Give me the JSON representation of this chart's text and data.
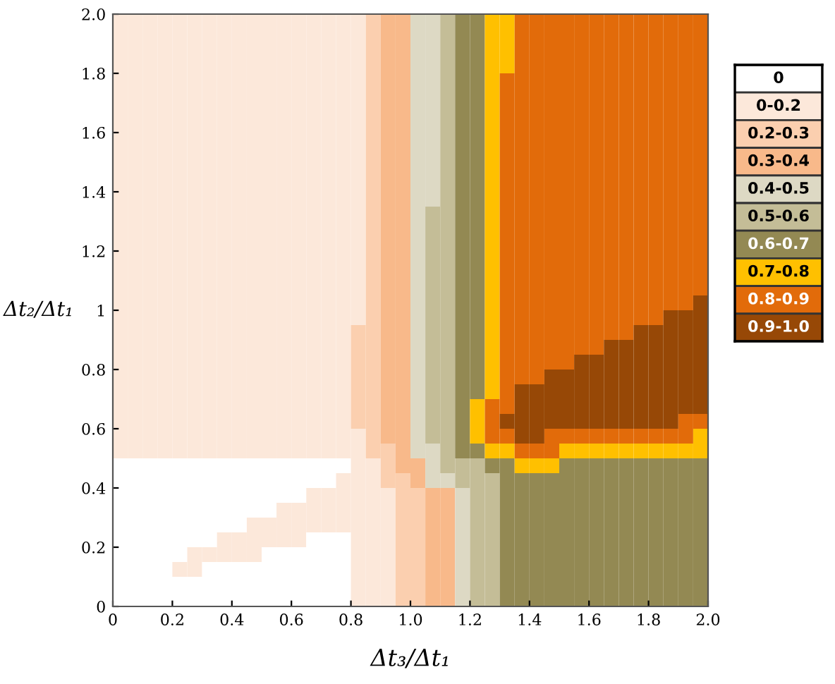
{
  "chart_data": {
    "type": "heatmap",
    "xlabel": "Δt₃/Δt₁",
    "ylabel": "Δt₂/Δt₁",
    "xlim": [
      0,
      2.0
    ],
    "ylim": [
      0,
      2.0
    ],
    "xticks": [
      0,
      0.2,
      0.4,
      0.6,
      0.8,
      {
        "value": 1,
        "label": "1.0"
      },
      1.2,
      1.4,
      1.6,
      1.8,
      {
        "value": 2,
        "label": "2.0"
      }
    ],
    "yticks": [
      0,
      0.2,
      0.4,
      0.6,
      0.8,
      1,
      1.2,
      1.4,
      1.6,
      1.8,
      {
        "value": 2,
        "label": "2.0"
      }
    ],
    "clim": [
      -0.5,
      9.5
    ],
    "cticks": [
      {
        "value": 0,
        "label": "0"
      },
      {
        "value": 1,
        "label": "0-0.2"
      },
      {
        "value": 2,
        "label": "0.2-0.3"
      },
      {
        "value": 3,
        "label": "0.3-0.4"
      },
      {
        "value": 4,
        "label": "0.4-0.5"
      },
      {
        "value": 5,
        "label": "0.5-0.6"
      },
      {
        "value": 6,
        "label": "0.6-0.7"
      },
      {
        "value": 7,
        "label": "0.7-0.8"
      },
      {
        "value": 8,
        "label": "0.8-0.9"
      },
      {
        "value": 9,
        "label": "0.9-1.0"
      }
    ],
    "colors": [
      "#ffffff",
      "#fce8da",
      "#fbcfaf",
      "#f8b98a",
      "#ddd9c4",
      "#c4bd97",
      "#938953",
      "#ffc000",
      "#e26b0a",
      "#974806"
    ],
    "cells": [
      [
        1,
        1,
        1,
        1,
        1,
        1,
        1,
        1,
        1,
        1,
        1,
        1,
        1,
        1,
        1,
        1,
        1,
        2,
        3,
        3,
        4,
        4,
        5,
        6,
        6,
        7,
        7,
        8,
        8,
        8,
        8,
        8,
        8,
        8,
        8,
        8,
        8,
        8,
        8,
        8
      ],
      [
        1,
        1,
        1,
        1,
        1,
        1,
        1,
        1,
        1,
        1,
        1,
        1,
        1,
        1,
        1,
        1,
        1,
        2,
        3,
        3,
        4,
        4,
        5,
        6,
        6,
        7,
        7,
        8,
        8,
        8,
        8,
        8,
        8,
        8,
        8,
        8,
        8,
        8,
        8,
        8
      ],
      [
        1,
        1,
        1,
        1,
        1,
        1,
        1,
        1,
        1,
        1,
        1,
        1,
        1,
        1,
        1,
        1,
        1,
        2,
        3,
        3,
        4,
        4,
        5,
        6,
        6,
        7,
        7,
        8,
        8,
        8,
        8,
        8,
        8,
        8,
        8,
        8,
        8,
        8,
        8,
        8
      ],
      [
        1,
        1,
        1,
        1,
        1,
        1,
        1,
        1,
        1,
        1,
        1,
        1,
        1,
        1,
        1,
        1,
        1,
        2,
        3,
        3,
        4,
        4,
        5,
        6,
        6,
        7,
        7,
        8,
        8,
        8,
        8,
        8,
        8,
        8,
        8,
        8,
        8,
        8,
        8,
        8
      ],
      [
        1,
        1,
        1,
        1,
        1,
        1,
        1,
        1,
        1,
        1,
        1,
        1,
        1,
        1,
        1,
        1,
        1,
        2,
        3,
        3,
        4,
        4,
        5,
        6,
        6,
        7,
        8,
        8,
        8,
        8,
        8,
        8,
        8,
        8,
        8,
        8,
        8,
        8,
        8,
        8
      ],
      [
        1,
        1,
        1,
        1,
        1,
        1,
        1,
        1,
        1,
        1,
        1,
        1,
        1,
        1,
        1,
        1,
        1,
        2,
        3,
        3,
        4,
        4,
        5,
        6,
        6,
        7,
        8,
        8,
        8,
        8,
        8,
        8,
        8,
        8,
        8,
        8,
        8,
        8,
        8,
        8
      ],
      [
        1,
        1,
        1,
        1,
        1,
        1,
        1,
        1,
        1,
        1,
        1,
        1,
        1,
        1,
        1,
        1,
        1,
        2,
        3,
        3,
        4,
        4,
        5,
        6,
        6,
        7,
        8,
        8,
        8,
        8,
        8,
        8,
        8,
        8,
        8,
        8,
        8,
        8,
        8,
        8
      ],
      [
        1,
        1,
        1,
        1,
        1,
        1,
        1,
        1,
        1,
        1,
        1,
        1,
        1,
        1,
        1,
        1,
        1,
        2,
        3,
        3,
        4,
        4,
        5,
        6,
        6,
        7,
        8,
        8,
        8,
        8,
        8,
        8,
        8,
        8,
        8,
        8,
        8,
        8,
        8,
        8
      ],
      [
        1,
        1,
        1,
        1,
        1,
        1,
        1,
        1,
        1,
        1,
        1,
        1,
        1,
        1,
        1,
        1,
        1,
        2,
        3,
        3,
        4,
        4,
        5,
        6,
        6,
        7,
        8,
        8,
        8,
        8,
        8,
        8,
        8,
        8,
        8,
        8,
        8,
        8,
        8,
        8
      ],
      [
        1,
        1,
        1,
        1,
        1,
        1,
        1,
        1,
        1,
        1,
        1,
        1,
        1,
        1,
        1,
        1,
        1,
        2,
        3,
        3,
        4,
        4,
        5,
        6,
        6,
        7,
        8,
        8,
        8,
        8,
        8,
        8,
        8,
        8,
        8,
        8,
        8,
        8,
        8,
        8
      ],
      [
        1,
        1,
        1,
        1,
        1,
        1,
        1,
        1,
        1,
        1,
        1,
        1,
        1,
        1,
        1,
        1,
        1,
        2,
        3,
        3,
        4,
        4,
        5,
        6,
        6,
        7,
        8,
        8,
        8,
        8,
        8,
        8,
        8,
        8,
        8,
        8,
        8,
        8,
        8,
        8
      ],
      [
        1,
        1,
        1,
        1,
        1,
        1,
        1,
        1,
        1,
        1,
        1,
        1,
        1,
        1,
        1,
        1,
        1,
        2,
        3,
        3,
        4,
        4,
        5,
        6,
        6,
        7,
        8,
        8,
        8,
        8,
        8,
        8,
        8,
        8,
        8,
        8,
        8,
        8,
        8,
        8
      ],
      [
        1,
        1,
        1,
        1,
        1,
        1,
        1,
        1,
        1,
        1,
        1,
        1,
        1,
        1,
        1,
        1,
        1,
        2,
        3,
        3,
        4,
        4,
        5,
        6,
        6,
        7,
        8,
        8,
        8,
        8,
        8,
        8,
        8,
        8,
        8,
        8,
        8,
        8,
        8,
        8
      ],
      [
        1,
        1,
        1,
        1,
        1,
        1,
        1,
        1,
        1,
        1,
        1,
        1,
        1,
        1,
        1,
        1,
        1,
        2,
        3,
        3,
        4,
        5,
        5,
        6,
        6,
        7,
        8,
        8,
        8,
        8,
        8,
        8,
        8,
        8,
        8,
        8,
        8,
        8,
        8,
        8
      ],
      [
        1,
        1,
        1,
        1,
        1,
        1,
        1,
        1,
        1,
        1,
        1,
        1,
        1,
        1,
        1,
        1,
        1,
        2,
        3,
        3,
        4,
        5,
        5,
        6,
        6,
        7,
        8,
        8,
        8,
        8,
        8,
        8,
        8,
        8,
        8,
        8,
        8,
        8,
        8,
        8
      ],
      [
        1,
        1,
        1,
        1,
        1,
        1,
        1,
        1,
        1,
        1,
        1,
        1,
        1,
        1,
        1,
        1,
        1,
        2,
        3,
        3,
        4,
        5,
        5,
        6,
        6,
        7,
        8,
        8,
        8,
        8,
        8,
        8,
        8,
        8,
        8,
        8,
        8,
        8,
        8,
        8
      ],
      [
        1,
        1,
        1,
        1,
        1,
        1,
        1,
        1,
        1,
        1,
        1,
        1,
        1,
        1,
        1,
        1,
        1,
        2,
        3,
        3,
        4,
        5,
        5,
        6,
        6,
        7,
        8,
        8,
        8,
        8,
        8,
        8,
        8,
        8,
        8,
        8,
        8,
        8,
        8,
        8
      ],
      [
        1,
        1,
        1,
        1,
        1,
        1,
        1,
        1,
        1,
        1,
        1,
        1,
        1,
        1,
        1,
        1,
        1,
        2,
        3,
        3,
        4,
        5,
        5,
        6,
        6,
        7,
        8,
        8,
        8,
        8,
        8,
        8,
        8,
        8,
        8,
        8,
        8,
        8,
        8,
        8
      ],
      [
        1,
        1,
        1,
        1,
        1,
        1,
        1,
        1,
        1,
        1,
        1,
        1,
        1,
        1,
        1,
        1,
        1,
        2,
        3,
        3,
        4,
        5,
        5,
        6,
        6,
        7,
        8,
        8,
        8,
        8,
        8,
        8,
        8,
        8,
        8,
        8,
        8,
        8,
        8,
        8
      ],
      [
        1,
        1,
        1,
        1,
        1,
        1,
        1,
        1,
        1,
        1,
        1,
        1,
        1,
        1,
        1,
        1,
        1,
        2,
        3,
        3,
        4,
        5,
        5,
        6,
        6,
        7,
        8,
        8,
        8,
        8,
        8,
        8,
        8,
        8,
        8,
        8,
        8,
        8,
        8,
        9
      ],
      [
        1,
        1,
        1,
        1,
        1,
        1,
        1,
        1,
        1,
        1,
        1,
        1,
        1,
        1,
        1,
        1,
        1,
        2,
        3,
        3,
        4,
        5,
        5,
        6,
        6,
        7,
        8,
        8,
        8,
        8,
        8,
        8,
        8,
        8,
        8,
        8,
        8,
        9,
        9,
        9
      ],
      [
        1,
        1,
        1,
        1,
        1,
        1,
        1,
        1,
        1,
        1,
        1,
        1,
        1,
        1,
        1,
        1,
        2,
        2,
        3,
        3,
        4,
        5,
        5,
        6,
        6,
        7,
        8,
        8,
        8,
        8,
        8,
        8,
        8,
        8,
        8,
        9,
        9,
        9,
        9,
        9
      ],
      [
        1,
        1,
        1,
        1,
        1,
        1,
        1,
        1,
        1,
        1,
        1,
        1,
        1,
        1,
        1,
        1,
        2,
        2,
        3,
        3,
        4,
        5,
        5,
        6,
        6,
        7,
        8,
        8,
        8,
        8,
        8,
        8,
        8,
        9,
        9,
        9,
        9,
        9,
        9,
        9
      ],
      [
        1,
        1,
        1,
        1,
        1,
        1,
        1,
        1,
        1,
        1,
        1,
        1,
        1,
        1,
        1,
        1,
        2,
        2,
        3,
        3,
        4,
        5,
        5,
        6,
        6,
        7,
        8,
        8,
        8,
        8,
        8,
        9,
        9,
        9,
        9,
        9,
        9,
        9,
        9,
        9
      ],
      [
        1,
        1,
        1,
        1,
        1,
        1,
        1,
        1,
        1,
        1,
        1,
        1,
        1,
        1,
        1,
        1,
        2,
        2,
        3,
        3,
        4,
        5,
        5,
        6,
        6,
        7,
        8,
        8,
        8,
        9,
        9,
        9,
        9,
        9,
        9,
        9,
        9,
        9,
        9,
        9
      ],
      [
        1,
        1,
        1,
        1,
        1,
        1,
        1,
        1,
        1,
        1,
        1,
        1,
        1,
        1,
        1,
        1,
        2,
        2,
        3,
        3,
        4,
        5,
        5,
        6,
        6,
        7,
        8,
        9,
        9,
        9,
        9,
        9,
        9,
        9,
        9,
        9,
        9,
        9,
        9,
        9
      ],
      [
        1,
        1,
        1,
        1,
        1,
        1,
        1,
        1,
        1,
        1,
        1,
        1,
        1,
        1,
        1,
        1,
        2,
        2,
        3,
        3,
        4,
        5,
        5,
        6,
        7,
        8,
        8,
        9,
        9,
        9,
        9,
        9,
        9,
        9,
        9,
        9,
        9,
        9,
        9,
        9
      ],
      [
        1,
        1,
        1,
        1,
        1,
        1,
        1,
        1,
        1,
        1,
        1,
        1,
        1,
        1,
        1,
        1,
        2,
        2,
        3,
        3,
        4,
        5,
        5,
        6,
        7,
        8,
        9,
        9,
        9,
        9,
        9,
        9,
        9,
        9,
        9,
        9,
        9,
        9,
        8,
        8
      ],
      [
        1,
        1,
        1,
        1,
        1,
        1,
        1,
        1,
        1,
        1,
        1,
        1,
        1,
        1,
        1,
        1,
        1,
        2,
        3,
        3,
        4,
        5,
        5,
        6,
        7,
        8,
        8,
        9,
        9,
        8,
        8,
        8,
        8,
        8,
        8,
        8,
        8,
        8,
        8,
        7
      ],
      [
        1,
        1,
        1,
        1,
        1,
        1,
        1,
        1,
        1,
        1,
        1,
        1,
        1,
        1,
        1,
        1,
        1,
        2,
        2,
        3,
        4,
        4,
        5,
        6,
        6,
        7,
        7,
        8,
        8,
        8,
        7,
        7,
        7,
        7,
        7,
        7,
        7,
        7,
        7,
        7
      ],
      [
        0,
        0,
        0,
        0,
        0,
        0,
        0,
        0,
        0,
        0,
        0,
        0,
        0,
        0,
        0,
        0,
        1,
        1,
        2,
        3,
        3,
        4,
        5,
        5,
        5,
        6,
        6,
        7,
        7,
        7,
        6,
        6,
        6,
        6,
        6,
        6,
        6,
        6,
        6,
        6
      ],
      [
        0,
        0,
        0,
        0,
        0,
        0,
        0,
        0,
        0,
        0,
        0,
        0,
        0,
        0,
        0,
        1,
        1,
        1,
        2,
        2,
        3,
        4,
        4,
        5,
        5,
        5,
        6,
        6,
        6,
        6,
        6,
        6,
        6,
        6,
        6,
        6,
        6,
        6,
        6,
        6
      ],
      [
        0,
        0,
        0,
        0,
        0,
        0,
        0,
        0,
        0,
        0,
        0,
        0,
        0,
        1,
        1,
        1,
        1,
        1,
        1,
        2,
        2,
        3,
        3,
        4,
        5,
        5,
        6,
        6,
        6,
        6,
        6,
        6,
        6,
        6,
        6,
        6,
        6,
        6,
        6,
        6
      ],
      [
        0,
        0,
        0,
        0,
        0,
        0,
        0,
        0,
        0,
        0,
        0,
        1,
        1,
        1,
        1,
        1,
        1,
        1,
        1,
        2,
        2,
        3,
        3,
        4,
        5,
        5,
        6,
        6,
        6,
        6,
        6,
        6,
        6,
        6,
        6,
        6,
        6,
        6,
        6,
        6
      ],
      [
        0,
        0,
        0,
        0,
        0,
        0,
        0,
        0,
        0,
        1,
        1,
        1,
        1,
        1,
        1,
        1,
        1,
        1,
        1,
        2,
        2,
        3,
        3,
        4,
        5,
        5,
        6,
        6,
        6,
        6,
        6,
        6,
        6,
        6,
        6,
        6,
        6,
        6,
        6,
        6
      ],
      [
        0,
        0,
        0,
        0,
        0,
        0,
        0,
        1,
        1,
        1,
        1,
        1,
        1,
        0,
        0,
        0,
        1,
        1,
        1,
        2,
        2,
        3,
        3,
        4,
        5,
        5,
        6,
        6,
        6,
        6,
        6,
        6,
        6,
        6,
        6,
        6,
        6,
        6,
        6,
        6
      ],
      [
        0,
        0,
        0,
        0,
        0,
        1,
        1,
        1,
        1,
        1,
        0,
        0,
        0,
        0,
        0,
        0,
        1,
        1,
        1,
        2,
        2,
        3,
        3,
        4,
        5,
        5,
        6,
        6,
        6,
        6,
        6,
        6,
        6,
        6,
        6,
        6,
        6,
        6,
        6,
        6
      ],
      [
        0,
        0,
        0,
        0,
        1,
        1,
        0,
        0,
        0,
        0,
        0,
        0,
        0,
        0,
        0,
        0,
        1,
        1,
        1,
        2,
        2,
        3,
        3,
        4,
        5,
        5,
        6,
        6,
        6,
        6,
        6,
        6,
        6,
        6,
        6,
        6,
        6,
        6,
        6,
        6
      ],
      [
        0,
        0,
        0,
        0,
        0,
        0,
        0,
        0,
        0,
        0,
        0,
        0,
        0,
        0,
        0,
        0,
        1,
        1,
        1,
        2,
        2,
        3,
        3,
        4,
        5,
        5,
        6,
        6,
        6,
        6,
        6,
        6,
        6,
        6,
        6,
        6,
        6,
        6,
        6,
        6
      ],
      [
        0,
        0,
        0,
        0,
        0,
        0,
        0,
        0,
        0,
        0,
        0,
        0,
        0,
        0,
        0,
        0,
        1,
        1,
        1,
        2,
        2,
        3,
        3,
        4,
        5,
        5,
        6,
        6,
        6,
        6,
        6,
        6,
        6,
        6,
        6,
        6,
        6,
        6,
        6,
        6
      ]
    ]
  }
}
